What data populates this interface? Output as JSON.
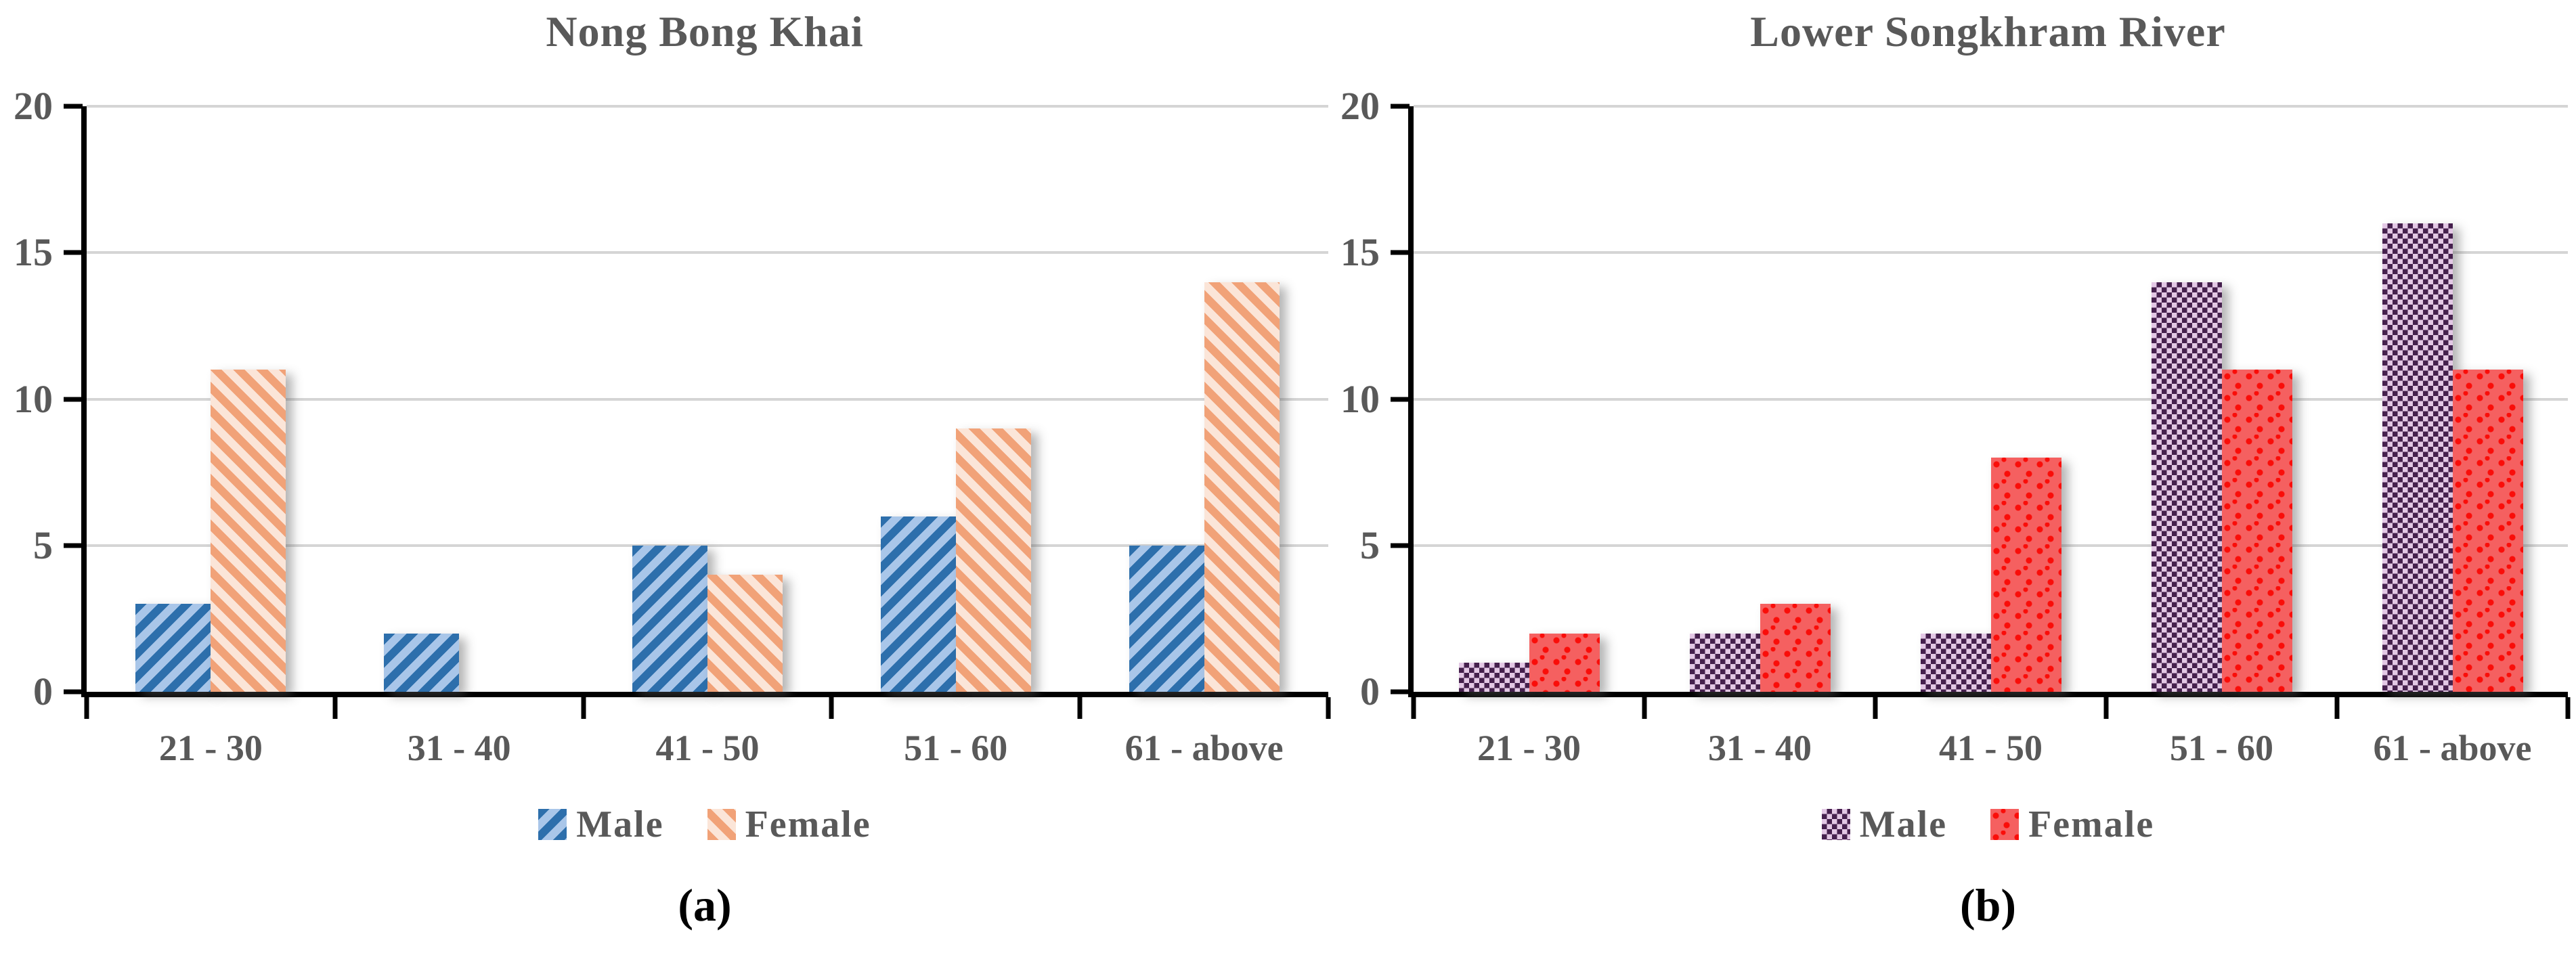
{
  "colors": {
    "text_gray": "#595959",
    "axis_black": "#000000",
    "gridline_gray": "#D5D5D5",
    "background": "#FFFFFF"
  },
  "chart_data": [
    {
      "type": "bar",
      "title": "Nong Bong Khai",
      "caption_label": "(a)",
      "categories": [
        "21 - 30",
        "31 - 40",
        "41 - 50",
        "51 - 60",
        "61 - above"
      ],
      "series": [
        {
          "name": "Male",
          "values": [
            3,
            2,
            5,
            6,
            5
          ],
          "pattern": "diagonal-up",
          "bg_color": "#A9C6E9",
          "fg_color": "#2D6FAC"
        },
        {
          "name": "Female",
          "values": [
            11,
            0,
            4,
            9,
            14
          ],
          "pattern": "diagonal-down",
          "bg_color": "#FBE5D8",
          "fg_color": "#F1A278"
        }
      ],
      "ylim": [
        0,
        20
      ],
      "y_ticks": [
        "20",
        "15",
        "10",
        "5",
        "0"
      ],
      "grid": "horizontal",
      "legend_position": "bottom"
    },
    {
      "type": "bar",
      "title": "Lower Songkhram River",
      "caption_label": "(b)",
      "categories": [
        "21 - 30",
        "31 - 40",
        "41 - 50",
        "51 - 60",
        "61 - above"
      ],
      "series": [
        {
          "name": "Male",
          "values": [
            1,
            2,
            2,
            14,
            16
          ],
          "pattern": "checker",
          "bg_color": "#E3C8E5",
          "fg_color": "#45204D"
        },
        {
          "name": "Female",
          "values": [
            2,
            3,
            8,
            11,
            11
          ],
          "pattern": "confetti",
          "bg_color": "#F56060",
          "fg_color": "#FA0D09"
        }
      ],
      "ylim": [
        0,
        20
      ],
      "y_ticks": [
        "20",
        "15",
        "10",
        "5",
        "0"
      ],
      "grid": "horizontal",
      "legend_position": "bottom"
    }
  ]
}
